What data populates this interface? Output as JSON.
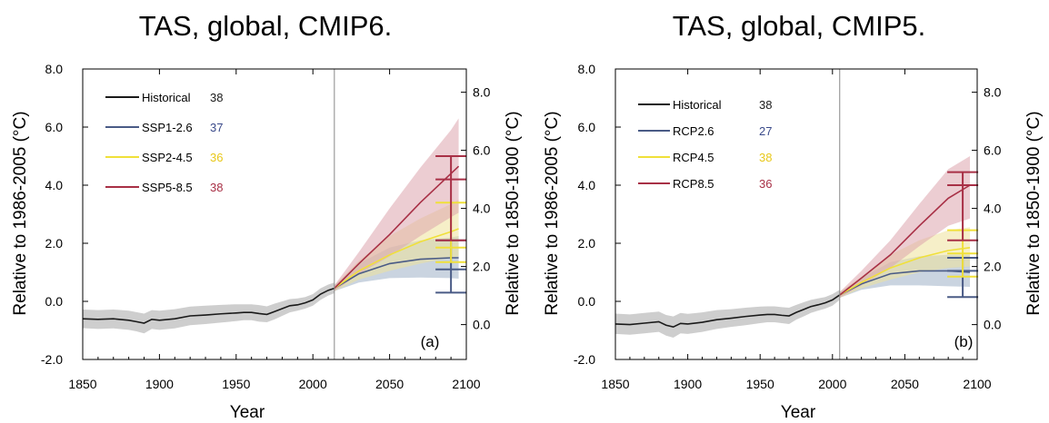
{
  "chart_data": [
    {
      "type": "line",
      "title": "TAS, global, CMIP6.",
      "xlabel": "Year",
      "ylabel": "Relative to 1986-2005 (°C)",
      "y2label": "Relative to 1850-1900 (°C)",
      "panel_label": "(a)",
      "xlim": [
        1850,
        2100
      ],
      "ylim": [
        -2.0,
        8.0
      ],
      "y2_offset": 0.8,
      "x_ticks": [
        1850,
        1900,
        1950,
        2000,
        2050,
        2100
      ],
      "y_ticks": [
        "-2.0",
        "0.0",
        "2.0",
        "4.0",
        "6.0",
        "8.0"
      ],
      "y2_ticks": [
        "0.0",
        "2.0",
        "4.0",
        "6.0",
        "8.0"
      ],
      "divider_year": 2014,
      "legend": "top-left",
      "series": [
        {
          "name": "Historical",
          "count": "38",
          "color": "#1a1a1a",
          "count_color": "#1a1a1a",
          "band_color": "#a6a6a6",
          "x": [
            1850,
            1860,
            1870,
            1880,
            1885,
            1890,
            1895,
            1900,
            1910,
            1920,
            1930,
            1940,
            1950,
            1955,
            1960,
            1965,
            1970,
            1975,
            1980,
            1985,
            1990,
            1995,
            2000,
            2005,
            2010,
            2014
          ],
          "y": [
            -0.6,
            -0.62,
            -0.6,
            -0.65,
            -0.7,
            -0.75,
            -0.62,
            -0.65,
            -0.6,
            -0.5,
            -0.47,
            -0.43,
            -0.4,
            -0.38,
            -0.38,
            -0.42,
            -0.45,
            -0.35,
            -0.25,
            -0.15,
            -0.12,
            -0.05,
            0.05,
            0.25,
            0.38,
            0.45
          ],
          "lower": [
            -0.92,
            -0.95,
            -0.93,
            -0.98,
            -1.03,
            -1.1,
            -0.95,
            -0.98,
            -0.93,
            -0.82,
            -0.78,
            -0.73,
            -0.68,
            -0.65,
            -0.65,
            -0.7,
            -0.72,
            -0.62,
            -0.5,
            -0.38,
            -0.32,
            -0.25,
            -0.15,
            0.05,
            0.2,
            0.28
          ],
          "upper": [
            -0.28,
            -0.3,
            -0.28,
            -0.32,
            -0.37,
            -0.42,
            -0.3,
            -0.32,
            -0.27,
            -0.18,
            -0.15,
            -0.12,
            -0.1,
            -0.1,
            -0.1,
            -0.13,
            -0.17,
            -0.08,
            0.0,
            0.08,
            0.1,
            0.15,
            0.25,
            0.45,
            0.58,
            0.65
          ]
        },
        {
          "name": "SSP1-2.6",
          "count": "37",
          "color": "#4a5b86",
          "count_color": "#3a4a8a",
          "band_color": "#9fb0c6",
          "x": [
            2014,
            2030,
            2050,
            2070,
            2090,
            2095
          ],
          "y": [
            0.45,
            0.95,
            1.3,
            1.45,
            1.5,
            1.5
          ],
          "lower": [
            0.35,
            0.65,
            0.8,
            0.82,
            0.8,
            0.78
          ],
          "upper": [
            0.55,
            1.3,
            1.85,
            2.1,
            2.2,
            2.25
          ],
          "whisker": {
            "low": 0.3,
            "mid": 1.1,
            "high": 2.1
          }
        },
        {
          "name": "SSP2-4.5",
          "count": "36",
          "color": "#f0e03a",
          "count_color": "#e8c81a",
          "band_color": "#efe29a",
          "x": [
            2014,
            2030,
            2050,
            2070,
            2090,
            2095
          ],
          "y": [
            0.45,
            1.05,
            1.6,
            2.05,
            2.4,
            2.5
          ],
          "lower": [
            0.35,
            0.75,
            1.05,
            1.3,
            1.5,
            1.55
          ],
          "upper": [
            0.55,
            1.4,
            2.25,
            2.85,
            3.35,
            3.5
          ],
          "whisker": {
            "low": 1.35,
            "mid": 1.85,
            "high": 3.4
          }
        },
        {
          "name": "SSP5-8.5",
          "count": "38",
          "color": "#a83046",
          "count_color": "#a83046",
          "band_color": "#dca4ad",
          "x": [
            2014,
            2030,
            2050,
            2070,
            2090,
            2095
          ],
          "y": [
            0.45,
            1.3,
            2.3,
            3.4,
            4.4,
            4.65
          ],
          "lower": [
            0.35,
            0.95,
            1.55,
            2.25,
            2.9,
            3.05
          ],
          "upper": [
            0.55,
            1.7,
            3.2,
            4.6,
            5.9,
            6.3
          ],
          "whisker": {
            "low": 2.1,
            "mid": 4.2,
            "high": 5.0
          }
        }
      ]
    },
    {
      "type": "line",
      "title": "TAS, global, CMIP5.",
      "xlabel": "Year",
      "ylabel": "Relative to 1986-2005 (°C)",
      "y2label": "Relative to 1850-1900 (°C)",
      "panel_label": "(b)",
      "xlim": [
        1850,
        2100
      ],
      "ylim": [
        -2.0,
        8.0
      ],
      "y2_offset": 0.8,
      "x_ticks": [
        1850,
        1900,
        1950,
        2000,
        2050,
        2100
      ],
      "y_ticks": [
        "-2.0",
        "0.0",
        "2.0",
        "4.0",
        "6.0",
        "8.0"
      ],
      "y2_ticks": [
        "0.0",
        "2.0",
        "4.0",
        "6.0",
        "8.0"
      ],
      "divider_year": 2005,
      "legend": "top-left",
      "series": [
        {
          "name": "Historical",
          "count": "38",
          "color": "#1a1a1a",
          "count_color": "#1a1a1a",
          "band_color": "#a6a6a6",
          "x": [
            1850,
            1860,
            1870,
            1880,
            1885,
            1890,
            1895,
            1900,
            1910,
            1920,
            1930,
            1940,
            1950,
            1955,
            1960,
            1965,
            1970,
            1975,
            1980,
            1985,
            1990,
            1995,
            2000,
            2005
          ],
          "y": [
            -0.78,
            -0.8,
            -0.75,
            -0.7,
            -0.82,
            -0.88,
            -0.76,
            -0.78,
            -0.72,
            -0.63,
            -0.58,
            -0.52,
            -0.47,
            -0.45,
            -0.45,
            -0.48,
            -0.5,
            -0.38,
            -0.28,
            -0.18,
            -0.12,
            -0.05,
            0.05,
            0.22
          ],
          "lower": [
            -1.12,
            -1.15,
            -1.1,
            -1.05,
            -1.18,
            -1.25,
            -1.1,
            -1.12,
            -1.05,
            -0.95,
            -0.88,
            -0.82,
            -0.75,
            -0.72,
            -0.72,
            -0.75,
            -0.78,
            -0.63,
            -0.52,
            -0.4,
            -0.32,
            -0.25,
            -0.15,
            0.05
          ],
          "upper": [
            -0.42,
            -0.45,
            -0.4,
            -0.35,
            -0.47,
            -0.52,
            -0.4,
            -0.43,
            -0.38,
            -0.3,
            -0.27,
            -0.22,
            -0.18,
            -0.17,
            -0.17,
            -0.2,
            -0.22,
            -0.12,
            -0.03,
            0.05,
            0.1,
            0.15,
            0.25,
            0.4
          ]
        },
        {
          "name": "RCP2.6",
          "count": "27",
          "color": "#4a5b86",
          "count_color": "#3a4a8a",
          "band_color": "#9fb0c6",
          "x": [
            2005,
            2020,
            2040,
            2060,
            2080,
            2095
          ],
          "y": [
            0.22,
            0.6,
            0.95,
            1.05,
            1.05,
            1.0
          ],
          "lower": [
            0.12,
            0.4,
            0.55,
            0.55,
            0.52,
            0.5
          ],
          "upper": [
            0.32,
            0.8,
            1.35,
            1.55,
            1.6,
            1.6
          ],
          "whisker": {
            "low": 0.15,
            "mid": 1.05,
            "high": 1.5
          }
        },
        {
          "name": "RCP4.5",
          "count": "38",
          "color": "#f0e03a",
          "count_color": "#e8c81a",
          "band_color": "#efe29a",
          "x": [
            2005,
            2020,
            2040,
            2060,
            2080,
            2095
          ],
          "y": [
            0.22,
            0.65,
            1.15,
            1.5,
            1.75,
            1.85
          ],
          "lower": [
            0.12,
            0.45,
            0.75,
            1.0,
            1.15,
            1.2
          ],
          "upper": [
            0.32,
            0.85,
            1.6,
            2.1,
            2.45,
            2.55
          ],
          "whisker": {
            "low": 0.85,
            "mid": 1.65,
            "high": 2.45
          }
        },
        {
          "name": "RCP8.5",
          "count": "36",
          "color": "#a83046",
          "count_color": "#a83046",
          "band_color": "#dca4ad",
          "x": [
            2005,
            2020,
            2040,
            2060,
            2080,
            2095
          ],
          "y": [
            0.22,
            0.8,
            1.6,
            2.6,
            3.55,
            4.0
          ],
          "lower": [
            0.12,
            0.55,
            1.15,
            1.9,
            2.6,
            2.85
          ],
          "upper": [
            0.32,
            1.05,
            2.1,
            3.35,
            4.55,
            5.0
          ],
          "whisker": {
            "low": 2.1,
            "mid": 4.0,
            "high": 4.45
          }
        }
      ]
    }
  ]
}
